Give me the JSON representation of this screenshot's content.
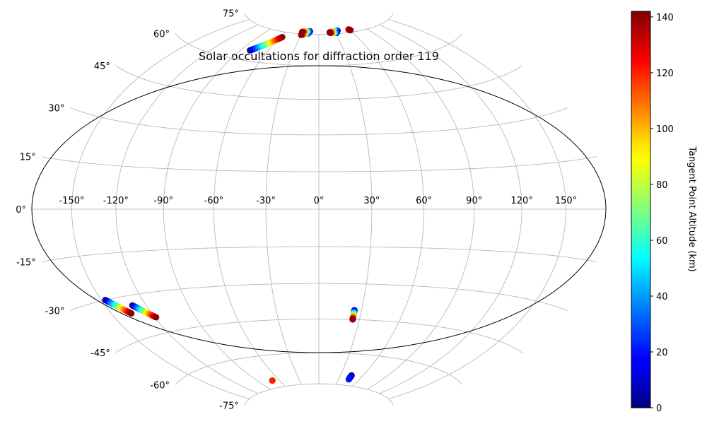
{
  "chart_data": {
    "type": "scatter",
    "projection": "hammer",
    "title": "Solar occultations for diffraction order 119",
    "grid": true,
    "lon_ticks": [
      -150,
      -120,
      -90,
      -60,
      -30,
      0,
      30,
      60,
      90,
      120,
      150
    ],
    "lon_tick_labels": [
      "-150°",
      "-120°",
      "-90°",
      "-60°",
      "-30°",
      "0°",
      "30°",
      "60°",
      "90°",
      "120°",
      "150°"
    ],
    "lat_ticks": [
      75,
      60,
      45,
      30,
      15,
      0,
      -15,
      -30,
      -45,
      -60,
      -75
    ],
    "lat_tick_labels": [
      "75°",
      "60°",
      "45°",
      "30°",
      "15°",
      "0°",
      "-15°",
      "-30°",
      "-45°",
      "-60°",
      "-75°"
    ],
    "colorbar": {
      "label": "Tangent Point Altitude (km)",
      "colormap": "jet",
      "range": [
        0,
        142
      ],
      "ticks": [
        0,
        20,
        40,
        60,
        80,
        100,
        120,
        140
      ],
      "tick_labels": [
        "0",
        "20",
        "40",
        "60",
        "80",
        "100",
        "120",
        "140"
      ]
    },
    "occultations": [
      {
        "lon": [
          -80,
          -57
        ],
        "lat": [
          64.5,
          72.5
        ],
        "alt": [
          0,
          140
        ]
      },
      {
        "lon": [
          -19,
          -30
        ],
        "lat": [
          75.5,
          74.5
        ],
        "alt": [
          0,
          140
        ]
      },
      {
        "lon": [
          -17,
          -31
        ],
        "lat": [
          76.5,
          76.0
        ],
        "alt": [
          0,
          140
        ]
      },
      {
        "lon": [
          36,
          20
        ],
        "lat": [
          76.5,
          76.0
        ],
        "alt": [
          0,
          140
        ]
      },
      {
        "lon": [
          32,
          20
        ],
        "lat": [
          75.5,
          75.8
        ],
        "alt": [
          0,
          140
        ]
      },
      {
        "lon": [
          58,
          60
        ],
        "lat": [
          76.5,
          76.0
        ],
        "alt": [
          120,
          140
        ]
      },
      {
        "lon": [
          -147,
          -135
        ],
        "lat": [
          -30,
          -36
        ],
        "alt": [
          0,
          140
        ]
      },
      {
        "lon": [
          -130,
          -119
        ],
        "lat": [
          -33.5,
          -39
        ],
        "alt": [
          0,
          140
        ]
      },
      {
        "lon": [
          25,
          25
        ],
        "lat": [
          -41,
          -45
        ],
        "alt": [
          0,
          140
        ]
      },
      {
        "lon": [
          45,
          45
        ],
        "lat": [
          -70,
          -72
        ],
        "alt": [
          0,
          20
        ]
      },
      {
        "lon": [
          -70,
          -70
        ],
        "lat": [
          -71.5,
          -71.5
        ],
        "alt": [
          0,
          120
        ]
      }
    ]
  }
}
